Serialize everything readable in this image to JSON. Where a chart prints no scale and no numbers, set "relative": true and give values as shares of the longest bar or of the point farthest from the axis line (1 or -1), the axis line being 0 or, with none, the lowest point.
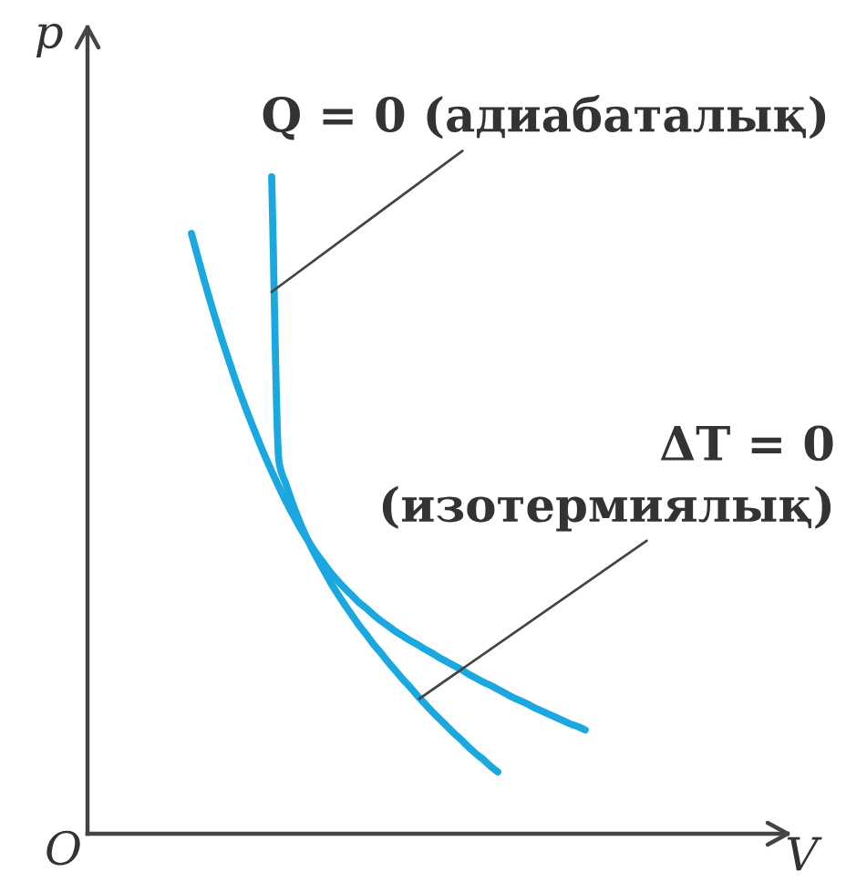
{
  "chart_data": {
    "type": "line",
    "relative": true,
    "xlabel": "V",
    "ylabel": "p",
    "marker": "none",
    "line_style": "solid",
    "categories": [
      null,
      null,
      null,
      null,
      null,
      null,
      null,
      null,
      null,
      null,
      null,
      null,
      null,
      null,
      null,
      null,
      null,
      null,
      null,
      null,
      null,
      null,
      null,
      null,
      null,
      null,
      null,
      null,
      null,
      null,
      null,
      null,
      null,
      null,
      null,
      null,
      null,
      null,
      null,
      null,
      null,
      null,
      null,
      null,
      null,
      null,
      null,
      null,
      null,
      null,
      null,
      null,
      null,
      null,
      null,
      null,
      null,
      null,
      null,
      null,
      null,
      null,
      null,
      null,
      null,
      null,
      null,
      null,
      null,
      null,
      null,
      null,
      null,
      null,
      null,
      null,
      null,
      null,
      null,
      null,
      null,
      null,
      null,
      null,
      null,
      null,
      null,
      null,
      null,
      null,
      null,
      null,
      null,
      null,
      null,
      null,
      null
    ],
    "series": [
      {
        "color": "#1ba8e0",
        "values": [
          null,
          null,
          null,
          null,
          null,
          null,
          null,
          null,
          null,
          null,
          null,
          null,
          null,
          null,
          null,
          null,
          null,
          null,
          null,
          null,
          null,
          null,
          null,
          null,
          null,
          null,
          1.0,
          0.567,
          0.531,
          0.499,
          0.471,
          0.446,
          0.424,
          0.404,
          0.384,
          0.366,
          0.349,
          0.333,
          0.317,
          0.303,
          0.288,
          0.275,
          0.261,
          0.248,
          0.235,
          0.223,
          0.21,
          0.198,
          0.186,
          0.175,
          0.164,
          0.153,
          0.143,
          0.132,
          0.122,
          0.113,
          0.103,
          0.094,
          null,
          null,
          null,
          null,
          null,
          null,
          null,
          null,
          null,
          null,
          null,
          null,
          null,
          null,
          null,
          null,
          null,
          null,
          null,
          null,
          null,
          null,
          null,
          null,
          null,
          null,
          null,
          null,
          null,
          null,
          null,
          null,
          null,
          null,
          null,
          null,
          null,
          null,
          null
        ]
      },
      {
        "color": "#1ba8e0",
        "values": [
          null,
          null,
          null,
          null,
          null,
          null,
          null,
          null,
          null,
          null,
          null,
          null,
          null,
          null,
          null,
          0.914,
          0.873,
          0.833,
          0.795,
          0.759,
          0.725,
          0.692,
          0.661,
          0.632,
          0.604,
          0.577,
          0.552,
          0.528,
          0.505,
          0.484,
          0.464,
          0.446,
          0.429,
          0.414,
          0.399,
          0.386,
          0.374,
          0.363,
          0.352,
          0.343,
          0.333,
          0.324,
          0.316,
          0.308,
          0.301,
          0.294,
          0.288,
          0.281,
          0.275,
          0.268,
          0.262,
          0.256,
          0.25,
          0.243,
          0.237,
          0.231,
          0.226,
          0.22,
          0.214,
          0.208,
          0.203,
          0.198,
          0.192,
          0.187,
          0.182,
          0.177,
          0.172,
          0.167,
          0.163,
          0.158,
          null,
          null,
          null,
          null,
          null,
          null,
          null,
          null,
          null,
          null,
          null,
          null,
          null,
          null,
          null,
          null,
          null,
          null,
          null,
          null,
          null,
          null,
          null,
          null,
          null,
          null,
          null
        ]
      }
    ],
    "annotations": [
      "O",
      "Q = 0 (адиабаталық)",
      "ΔT = 0\n(изотермиялық)"
    ]
  }
}
